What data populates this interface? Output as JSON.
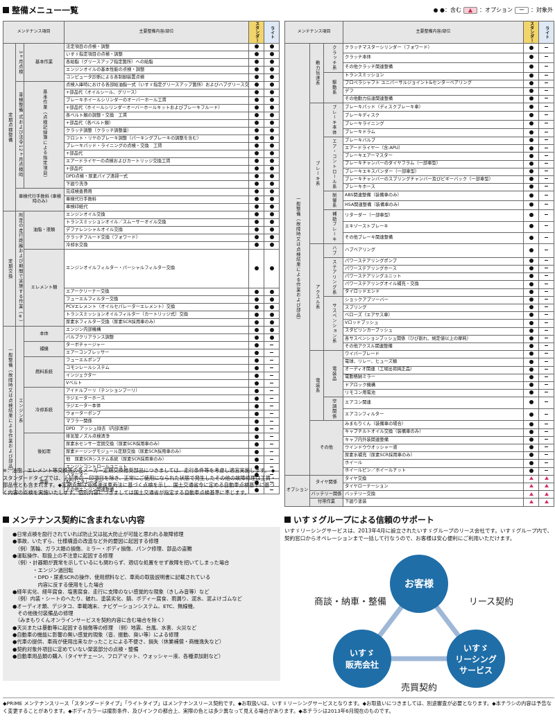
{
  "title": "整備メニュー一覧",
  "legend": {
    "std": "●：含む",
    "opt_sym": "▲",
    "opt": "：オプション",
    "na_sym": "ー",
    "na": "：対象外"
  },
  "table_head": {
    "col1": "メンテナンス項目",
    "col2": "主要整備内容/部位",
    "std": "スタンダード",
    "lite": "ライト"
  },
  "left_rows": [
    [
      "法定項目の点検・調整",
      "●",
      "●"
    ],
    [
      "いすゞ指定項目の点検・調整",
      "●",
      "●"
    ],
    [
      "各給脂（グリースアップ指定箇所）への給脂",
      "●",
      "●"
    ],
    [
      "エンジンオイルの基本性能の点検・調整",
      "●",
      "●"
    ],
    [
      "コンピュータ診断による各制御装置点検",
      "●",
      "●"
    ],
    [
      "点検入庫時における各部給油脂一式（いすゞ指定グリースアップ箇所）およびハブグリース交換 工賃",
      "●",
      "●"
    ],
    [
      "+部品代（オイルシール、グリース）",
      "●",
      "●"
    ],
    [
      "ブレーキホイールシリンダーのオーバーホール工賃",
      "●",
      "●"
    ],
    [
      "+部品代（ホイールシリンダーオーバーホールキットおよびブレーキフルード）",
      "●",
      "●"
    ],
    [
      "各ベルト類の調整・交換　工賃",
      "●",
      "●"
    ],
    [
      "+部品代（各ベルト類）",
      "●",
      "●"
    ],
    [
      "クラッチ調整（クラッチ調整量）",
      "●",
      "●"
    ],
    [
      "フロント・リヤのブレーキ調整（パーキングブレーキの調整を含む）",
      "●",
      "●"
    ],
    [
      "ブレーキパッド・ライニングの点検・交換　工賃",
      "●",
      "●"
    ],
    [
      "+部品代",
      "●",
      "●"
    ],
    [
      "エアードライヤーの点検およびカートリッジ交換工賃",
      "●",
      "●"
    ],
    [
      "+部品代",
      "●",
      "●"
    ],
    [
      "DPD点検・尿素パイプ清掃一式",
      "●",
      "●"
    ],
    [
      "下廻り洗浄",
      "●",
      "●"
    ],
    [
      "完成検査費用",
      "●",
      "●"
    ],
    [
      "車検代行手数料",
      "●",
      "●"
    ],
    [
      "車検印紙代",
      "●",
      "●"
    ],
    [
      "エンジンオイル交換",
      "●",
      "●"
    ],
    [
      "トランスミッションオイル／スムーサーオイル交換",
      "●",
      "●"
    ],
    [
      "デファレンシャルオイル交換",
      "●",
      "●"
    ],
    [
      "クラッチフルード交換（フォワード）",
      "●",
      "●"
    ],
    [
      "冷却水交換",
      "●",
      "●"
    ],
    [
      "エンジンオイルフィルター・パーシャルフィルター交換",
      "●",
      "●"
    ],
    [
      "エアークリーナー交換",
      "●",
      "●"
    ],
    [
      "フューエルフィルター交換",
      "●",
      "●"
    ],
    [
      "PCVエレメント（オイルセパレーターエレメント）交換",
      "●",
      "●"
    ],
    [
      "トランスミッションオイルフィルター（カートリッジ式）交換",
      "●",
      "●"
    ],
    [
      "尿素水フィルター交換（尿素SCR採用車のみ）",
      "●",
      "●"
    ],
    [
      "エンジン内部機構",
      "●",
      "●"
    ],
    [
      "バルブクリアランス調整",
      "●",
      "●"
    ],
    [
      "ターボチャージャー",
      "●",
      "ー"
    ],
    [
      "エアーコンプレッサー",
      "●",
      "ー"
    ],
    [
      "フューエルポンプ",
      "●",
      "ー"
    ],
    [
      "コモンレールシステム",
      "●",
      "ー"
    ],
    [
      "インジェクター",
      "●",
      "ー"
    ],
    [
      "Vベルト",
      "●",
      "ー"
    ],
    [
      "アイドルプーリ（テンションプーリ）",
      "●",
      "ー"
    ],
    [
      "ラジエーターホース",
      "●",
      "ー"
    ],
    [
      "ラジエーター本体",
      "●",
      "ー"
    ],
    [
      "ウォーターポンプ",
      "●",
      "ー"
    ],
    [
      "マフラー関係",
      "●",
      "ー"
    ],
    [
      "DPD　アッシュ除去（内部清掃）",
      "●",
      "ー"
    ],
    [
      "排気管ノズル点検清浄",
      "●",
      "ー"
    ],
    [
      "尿素水センサー定期交換（尿素SCR採用車のみ）",
      "●",
      "ー"
    ],
    [
      "尿素ドージングモジュール定期交換（尿素SCR採用車のみ）",
      "●",
      "ー"
    ],
    [
      "他　尿素SCRシステム系統（尿素SCR採用車のみ）",
      "●",
      "ー"
    ],
    [
      "エンジンコントロールユニット",
      "●",
      "ー"
    ],
    [
      "スターター",
      "●",
      "ー"
    ],
    [
      "ACジェネレーター",
      "●",
      "ー"
    ],
    [
      "その他エンジン関連整備",
      "●",
      "ー"
    ]
  ],
  "right_rows": [
    [
      "クラッチマスターシリンダー（フォワード）",
      "●",
      "ー"
    ],
    [
      "クラッチ本体",
      "●",
      "ー"
    ],
    [
      "その他クラッチ関連整備",
      "●",
      "ー"
    ],
    [
      "トランスミッション",
      "●",
      "ー"
    ],
    [
      "プロペラシャフト ユニバーサルジョイント&センターベアリング",
      "●",
      "ー"
    ],
    [
      "デフ",
      "●",
      "ー"
    ],
    [
      "その他動力伝達関連整備",
      "●",
      "ー"
    ],
    [
      "ブレーキパッド（ディスクブレーキ車）",
      "●",
      "ー"
    ],
    [
      "ブレーキディスク",
      "●",
      "ー"
    ],
    [
      "ブレーキライニング",
      "●",
      "ー"
    ],
    [
      "ブレーキドラム",
      "●",
      "ー"
    ],
    [
      "ブレーキバルブ",
      "●",
      "ー"
    ],
    [
      "エアードライヤー（含:APU）",
      "●",
      "ー"
    ],
    [
      "ブレーキエアーマスター",
      "●",
      "ー"
    ],
    [
      "ブレーキチャンバーのダイヤフラム（一部車型）",
      "●",
      "ー"
    ],
    [
      "ブレーキエキスパンダー（一部車型）",
      "●",
      "ー"
    ],
    [
      "ブレーキチャンバーのスプリングチャンバー及びピギーバック（一部車型）",
      "●",
      "ー"
    ],
    [
      "ブレーキホース",
      "●",
      "ー"
    ],
    [
      "ABS関連整備（装備車のみ）",
      "●",
      "ー"
    ],
    [
      "HSA関連整備（装備車のみ）",
      "●",
      "ー"
    ],
    [
      "リターダー（一部車型）",
      "●",
      "ー"
    ],
    [
      "エキゾーストブレーキ",
      "●",
      "ー"
    ],
    [
      "その他ブレーキ関連整備",
      "●",
      "ー"
    ],
    [
      "ハブベアリング",
      "●",
      "ー"
    ],
    [
      "パワーステアリングポンプ",
      "●",
      "ー"
    ],
    [
      "パワーステアリングホース",
      "●",
      "ー"
    ],
    [
      "パワーステアリングユニット",
      "●",
      "ー"
    ],
    [
      "パワーステアリングオイル補充・交換",
      "●",
      "ー"
    ],
    [
      "タイロッドエンド",
      "●",
      "ー"
    ],
    [
      "ショックアブソーバー",
      "●",
      "ー"
    ],
    [
      "スプリング",
      "●",
      "ー"
    ],
    [
      "ベローズ（エアサス車）",
      "●",
      "ー"
    ],
    [
      "Vロッドブッシュ",
      "●",
      "ー"
    ],
    [
      "スタビリンカーブッシュ",
      "●",
      "ー"
    ],
    [
      "各サスペンションブッシュ関係（ひび割れ、規定値以上の摩耗）",
      "●",
      "ー"
    ],
    [
      "その他アクスル関連整備",
      "●",
      "ー"
    ],
    [
      "ワイパーブレード",
      "●",
      "ー"
    ],
    [
      "電球、リレー、ヒューズ類",
      "●",
      "ー"
    ],
    [
      "オーディオ関連（工場出荷純正品）",
      "●",
      "ー"
    ],
    [
      "電動格納ミラー",
      "●",
      "ー"
    ],
    [
      "ドアロック機構",
      "●",
      "ー"
    ],
    [
      "リモコン用電池",
      "●",
      "ー"
    ],
    [
      "エアコン関連",
      "●",
      "ー"
    ],
    [
      "エアコンフィルター",
      "●",
      "ー"
    ],
    [
      "みまもりくん（装備車の場合）",
      "●",
      "ー"
    ],
    [
      "キャブチルトオイル交換（装備車のみ）",
      "●",
      "ー"
    ],
    [
      "キャブ内外装関連整備",
      "●",
      "ー"
    ],
    [
      "ウインドウウオッシャー液",
      "●",
      "ー"
    ],
    [
      "尿素水補充（尿素SCR採用車のみ）",
      "●",
      "ー"
    ],
    [
      "ホイール",
      "●",
      "ー"
    ],
    [
      "ホイールピン／ホイールナット",
      "●",
      "ー"
    ],
    [
      "タイヤ交換",
      "▲",
      "▲"
    ],
    [
      "タイヤローテーション",
      "▲",
      "▲"
    ],
    [
      "バッテリー交換",
      "▲",
      "▲"
    ],
    [
      "下廻り塗装",
      "▲",
      "▲"
    ]
  ],
  "note": "※：油脂、エレメント等交換等の各メーカー定期交換推奨部品につきましては、走行条件等を考慮し適宜実施します。 ◆スタンダードタイプでは、上記表の－印項目を除き、正常にご使用になられた状態で発生したその他の故障修理は工賃・部品代とも含まれます。◆定期点検は道路運送車両法に基づく点検を示し、国土交通省令に定める自動車点検基準に基づく内容の点検を実施いたします。個別内容につきましては国土交通省が指定する自動車点検基準に準じます。",
  "excl_title": "メンテナンス契約に含まれない内容",
  "excl_items": [
    "●日常点検を励行されていれば防止又は拡大防止が可能と思われる故障修理",
    "●事故、いたずら、仕様構造の改造など外的要因に起因する修理",
    "　（例）落輪、ガラス類の損傷、ミラー・ボディ損傷、パンク修理、部品の盗難",
    "●運転操作、取扱上の不注意に起因する修理",
    "　（例）・計器類が異常を示しているにも関わらず、適切な処置をせず故障を招いてしまった場合",
    "　　　　・エンジン過回転",
    "　　　　・DPD・尿素SCRの操作、使用燃料など、車両の取扱説明書に記載されている",
    "　　　　　内容に反する使用をした場合",
    "●経年劣化、経年腐食、塩害腐食、走行に支障のない感覚的な現象（きしみ音等）など",
    "　（例）内装・シートのへたり、破れ、塗装劣化、錆、ボディー腐食、雨漏り、泥水、泥よけゴムなど",
    "●オーディオ類、デジタコ、車載端末、ナビゲーションシステム、ETC、無線機、",
    "　その他後付装備品の修理",
    "　（みまもりくんオンラインサービスを契約内容に含む場合を除く）",
    "●天災または暴動等に起因する損傷等の修理　（例）地震、台風、水害、火災など",
    "●自動車の機能に影響の無い感覚的現象（音、振動、臭い等）による修理",
    "●代車の提供、車両が使用出来なかったことによる不便さ、損失（休業補償・商機逸失など）",
    "●契約対象外項目に定めていない架装部分の点検・整備",
    "●自動車用品類の購入（タイヤチェーン、フロアマット、ウォッシャー液、各種添加剤など）"
  ],
  "support_title": "いすゞグループによる信頼のサポート",
  "support_text": "いすゞリーシングサービスは、2013年4月に設立されたいすゞグループのリース会社です。いすゞグループ内で、契約窓口からオペレーションまで一括して行なうので、お客様は安心便利にご利用いただけます。",
  "diagram": {
    "customer": "お客様",
    "dealer1": "いすゞ",
    "dealer2": "販売会社",
    "leasing1": "いすゞ",
    "leasing2": "リーシング",
    "leasing3": "サービス",
    "left_label": "商談・納車・整備",
    "right_label": "リース契約",
    "bottom_label": "売買契約"
  },
  "footer": "◆PRIME メンテナンスリース「スタンダードタイプ」「ライトタイプ」はメンテナンスリース契約です。◆お取扱いは、いすゞリーシングサービスとなります。◆お取扱いにつきましては、別途審査が必要となります。◆本チラシの内容は予告なく変更することがあります。◆ボディカラーは撮影条件、及びインクの都合上、実際の色とは多少異なって見える場合があります。◆本チラシは2013年6月現在のものです。",
  "colors": {
    "std_col": "#f1d56c",
    "lite_col": "#dfe9f5",
    "opt": "#d03060",
    "cell_grey": "#e6e6e6"
  }
}
